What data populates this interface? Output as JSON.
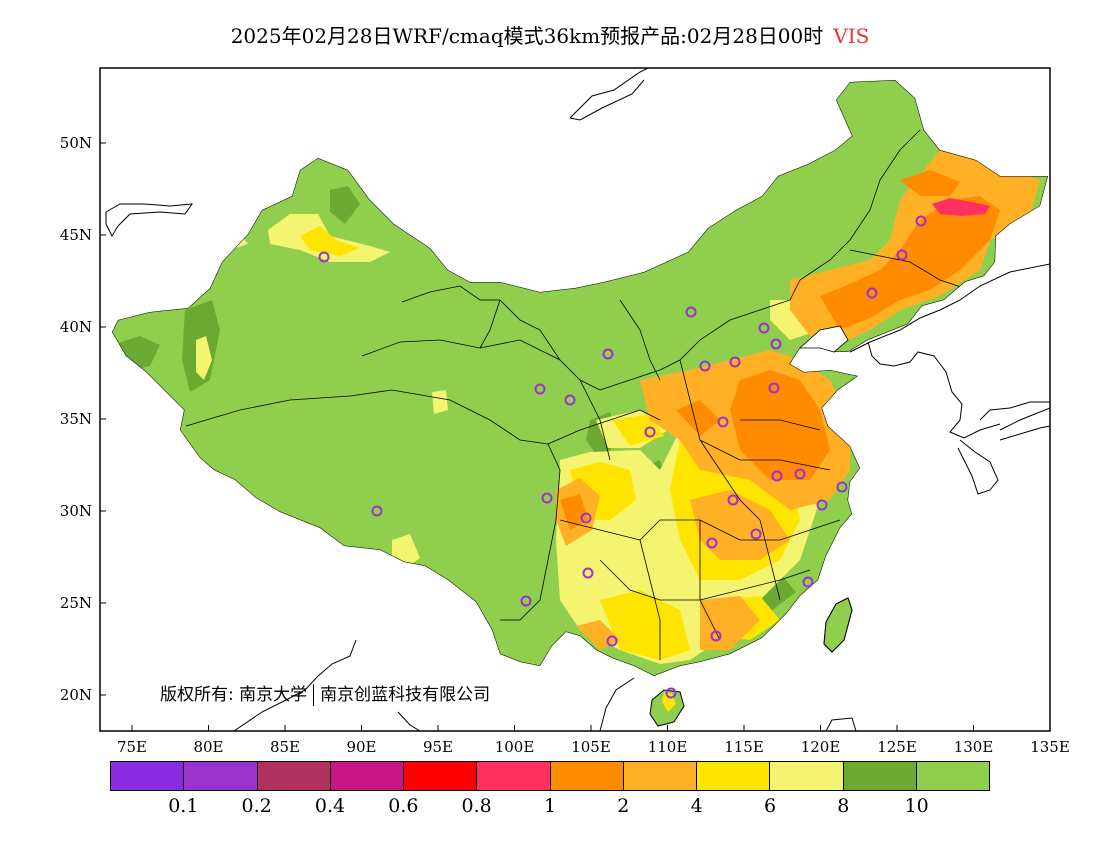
{
  "title": {
    "text": "2025年02月28日WRF/cmaq模式36km预报产品:02月28日00时",
    "variable": "VIS",
    "variable_color": "#e8323c"
  },
  "axes": {
    "lon_labels": [
      "75E",
      "80E",
      "85E",
      "90E",
      "95E",
      "100E",
      "105E",
      "110E",
      "115E",
      "120E",
      "125E",
      "130E",
      "135E"
    ],
    "lat_labels": [
      "50N",
      "45N",
      "40N",
      "35N",
      "30N",
      "25N",
      "20N"
    ]
  },
  "copyright": {
    "owner": "版权所有:",
    "org1": "南京大学",
    "org2": "南京创蓝科技有限公司"
  },
  "legend": {
    "colors": [
      "#8a2be2",
      "#9a32cd",
      "#b03060",
      "#c71585",
      "#ff0000",
      "#ff3060",
      "#ff8c00",
      "#ffb024",
      "#ffe400",
      "#f4f470",
      "#6aaa32",
      "#90cf4e"
    ],
    "ticks": [
      "0.1",
      "0.2",
      "0.4",
      "0.6",
      "0.8",
      "1",
      "2",
      "4",
      "6",
      "8",
      "10"
    ]
  },
  "map_colors": {
    "land_good": "#90cf4e",
    "land_dark": "#6aaa32",
    "yellow_light": "#f4f470",
    "yellow": "#ffe400",
    "orange_light": "#ffb024",
    "orange": "#ff8c00",
    "red": "#ff3060",
    "station_marker": "#9a32cd"
  }
}
